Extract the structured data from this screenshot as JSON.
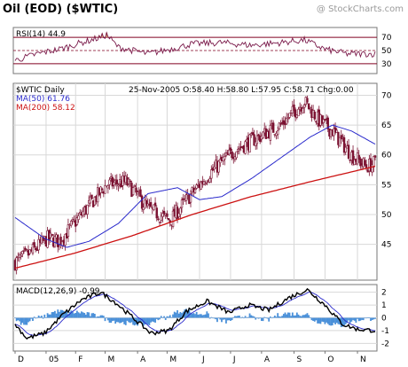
{
  "header": {
    "title": "Oil (EOD) ($WTIC)",
    "credit": "@ StockCharts.com"
  },
  "rsi": {
    "label": "RSI(14)",
    "value": "44.9",
    "ticks": [
      70,
      50,
      30
    ],
    "ylim": [
      15,
      85
    ],
    "color_line": "#7a1a4a",
    "color_band": "#800020",
    "color_fill": "#d9a06a"
  },
  "price": {
    "symbol_label": "$WTIC Daily",
    "date": "25-Nov-2005",
    "ohlc": {
      "open_label": "O:58.40",
      "high_label": "H:58.80",
      "low_label": "L:57.95",
      "close_label": "C:58.71",
      "chg_label": "Chg:0.00"
    },
    "ma50_label": "MA(50) 61.76",
    "ma200_label": "MA(200) 58.12",
    "ticks": [
      70,
      65,
      60,
      55,
      50,
      45
    ],
    "ylim": [
      39,
      72
    ],
    "color_candle": "#7a1030",
    "color_ma50": "#2a2acc",
    "color_ma200": "#cc1111"
  },
  "macd": {
    "label": "MACD(12,26,9)",
    "value": "-0.99",
    "ticks": [
      "2",
      "1",
      "0",
      "-1",
      "-2"
    ],
    "tick_values": [
      2,
      1,
      0,
      -1,
      -2
    ],
    "ylim": [
      -2.6,
      2.6
    ],
    "color_macd": "#000000",
    "color_signal": "#2a2acc",
    "color_hist": "#4a90d9"
  },
  "xaxis": {
    "labels": [
      "D",
      "05",
      "F",
      "M",
      "A",
      "M",
      "J",
      "J",
      "A",
      "S",
      "O",
      "N"
    ]
  },
  "chart_data": {
    "type": "candlestick",
    "title": "Oil (EOD) ($WTIC)",
    "timeframe": "Daily, Dec 2004 - 25 Nov 2005",
    "months": [
      "D",
      "05",
      "F",
      "M",
      "A",
      "M",
      "J",
      "J",
      "A",
      "S",
      "O",
      "N"
    ],
    "close_approx": [
      42,
      43.5,
      45.5,
      50,
      55,
      55,
      51,
      53,
      57,
      61,
      63,
      65,
      69,
      66,
      64,
      60,
      58.7
    ],
    "close_approx_months": [
      "Dec",
      "Dec",
      "Jan",
      "Feb",
      "Mar",
      "Apr",
      "Apr",
      "May",
      "Jun",
      "Jun",
      "Jul",
      "Aug",
      "Aug",
      "Sep",
      "Oct",
      "Oct",
      "Nov"
    ],
    "ma50_approx": [
      49.5,
      46,
      44.5,
      45,
      48,
      53.5,
      54.5,
      52,
      52.5,
      56,
      59,
      61.5,
      64,
      65,
      64,
      61.8
    ],
    "ma200_approx": [
      41,
      42.5,
      44,
      46,
      48,
      49.5,
      51,
      52.5,
      54,
      55.5,
      57,
      58.1
    ],
    "ylim": [
      39,
      72
    ],
    "rsi_ylim": [
      15,
      85
    ],
    "macd_ylim": [
      -2.6,
      2.6
    ]
  }
}
